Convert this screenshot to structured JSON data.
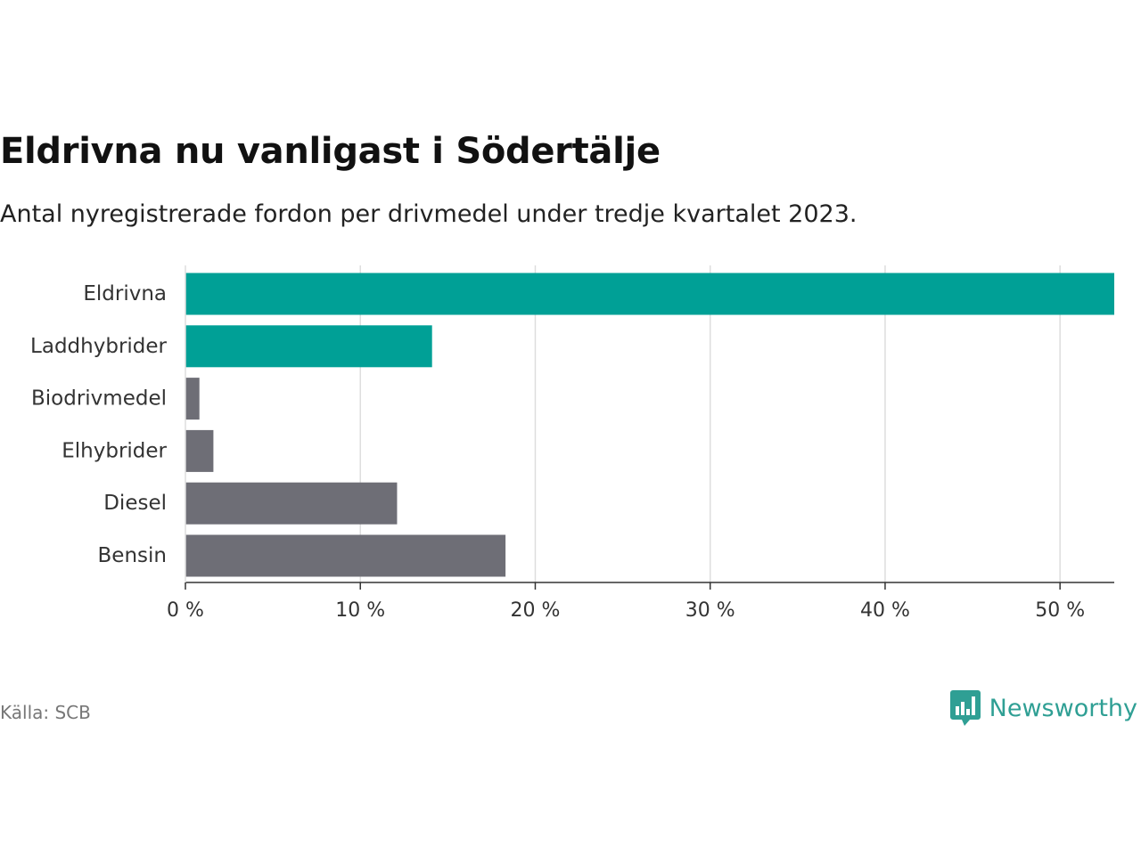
{
  "chart_data": {
    "type": "bar",
    "orientation": "horizontal",
    "title": "Eldrivna nu vanligast i Södertälje",
    "subtitle": "Antal nyregistrerade fordon per drivmedel under tredje kvartalet 2023.",
    "categories": [
      "Eldrivna",
      "Laddhybrider",
      "Biodrivmedel",
      "Elhybrider",
      "Diesel",
      "Bensin"
    ],
    "values": [
      53.1,
      14.1,
      0.8,
      1.6,
      12.1,
      18.3
    ],
    "bar_colors": [
      "#00a096",
      "#00a096",
      "#6e6e76",
      "#6e6e76",
      "#6e6e76",
      "#6e6e76"
    ],
    "xlim": [
      0,
      53.1
    ],
    "xticks": [
      0,
      10,
      20,
      30,
      40,
      50
    ],
    "xtick_labels": [
      "0 %",
      "10 %",
      "20 %",
      "30 %",
      "40 %",
      "50 %"
    ],
    "xlabel": "",
    "ylabel": "",
    "grid": true
  },
  "footer": {
    "source": "Källa: SCB",
    "brand": "Newsworthy"
  },
  "colors": {
    "highlight": "#00a096",
    "muted": "#6e6e76",
    "brand": "#2f9f94",
    "grid": "#dddddd"
  }
}
